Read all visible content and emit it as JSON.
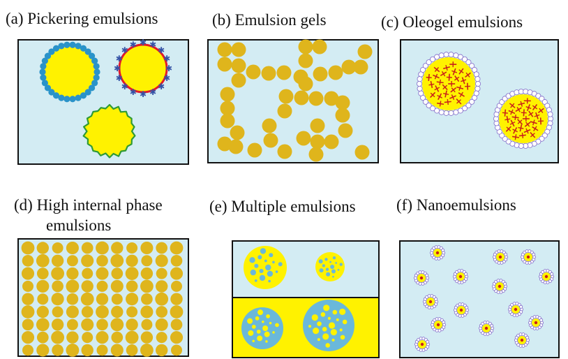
{
  "panels": {
    "a": {
      "title": "(a) Pickering emulsions"
    },
    "b": {
      "title": "(b) Emulsion gels"
    },
    "c": {
      "title": "(c) Oleogel emulsions"
    },
    "d": {
      "title_line1": "(d) High internal phase",
      "title_line2": "emulsions"
    },
    "e": {
      "title": "(e) Multiple emulsions"
    },
    "f": {
      "title": "(f) Nanoemulsions"
    }
  },
  "colors": {
    "water_phase": "#d3ecf3",
    "oil_droplet": "#fff200",
    "gel_droplet": "#dfb51c",
    "particle_blue": "#2a93c9",
    "protein_red": "#e21b2a",
    "protein_star": "#3553a6",
    "polymer_green": "#2e9a35",
    "surfactant_purple": "#7f68c8",
    "crystal_red": "#c8201b",
    "inner_blue": "#6ab8da",
    "border": "#111111"
  },
  "icons": {
    "a": "pickering-droplets-icon",
    "b": "gel-network-icon",
    "c": "oleogel-droplet-icon",
    "d": "packed-droplets-icon",
    "e": "double-emulsion-icon",
    "f": "nanodroplet-icon"
  }
}
